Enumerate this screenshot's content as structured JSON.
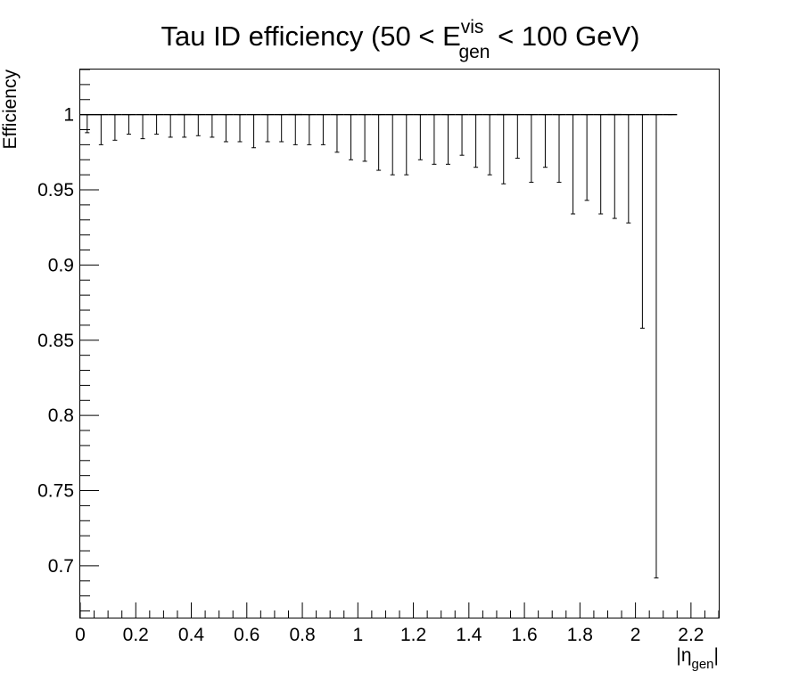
{
  "chart_data": {
    "type": "scatter",
    "title": {
      "main": "Tau ID efficiency (50 < E",
      "sup": "vis",
      "sub": "gen",
      "tail": " < 100 GeV)"
    },
    "ylabel": "Efficiency",
    "xlabel": {
      "main": "|η",
      "sub": "gen",
      "tail": "|"
    },
    "xlim": [
      0,
      2.3
    ],
    "ylim": [
      0.665,
      1.03
    ],
    "x_ticks": [
      "0",
      "0.2",
      "0.4",
      "0.6",
      "0.8",
      "1",
      "1.2",
      "1.4",
      "1.6",
      "1.8",
      "2",
      "2.2"
    ],
    "y_ticks": [
      "0.7",
      "0.75",
      "0.8",
      "0.85",
      "0.9",
      "0.95",
      "1"
    ],
    "grid": false,
    "legend": "none",
    "bin_width": 0.05,
    "series": [
      {
        "values": [
          1,
          1,
          1,
          1,
          1,
          1,
          1,
          1,
          1,
          1,
          1,
          1,
          1,
          1,
          1,
          1,
          1,
          1,
          1,
          1,
          1,
          1,
          1,
          1,
          1,
          1,
          1,
          1,
          1,
          1,
          1,
          1,
          1,
          1,
          1,
          1,
          1,
          1,
          1,
          1,
          1,
          1,
          1
        ],
        "x_bins": [
          [
            0.0,
            0.05
          ],
          [
            0.05,
            0.1
          ],
          [
            0.1,
            0.15
          ],
          [
            0.15,
            0.2
          ],
          [
            0.2,
            0.25
          ],
          [
            0.25,
            0.3
          ],
          [
            0.3,
            0.35
          ],
          [
            0.35,
            0.4
          ],
          [
            0.4,
            0.45
          ],
          [
            0.45,
            0.5
          ],
          [
            0.5,
            0.55
          ],
          [
            0.55,
            0.6
          ],
          [
            0.6,
            0.65
          ],
          [
            0.65,
            0.7
          ],
          [
            0.7,
            0.75
          ],
          [
            0.75,
            0.8
          ],
          [
            0.8,
            0.85
          ],
          [
            0.85,
            0.9
          ],
          [
            0.9,
            0.95
          ],
          [
            0.95,
            1.0
          ],
          [
            1.0,
            1.05
          ],
          [
            1.05,
            1.1
          ],
          [
            1.1,
            1.15
          ],
          [
            1.15,
            1.2
          ],
          [
            1.2,
            1.25
          ],
          [
            1.25,
            1.3
          ],
          [
            1.3,
            1.35
          ],
          [
            1.35,
            1.4
          ],
          [
            1.4,
            1.45
          ],
          [
            1.45,
            1.5
          ],
          [
            1.5,
            1.55
          ],
          [
            1.55,
            1.6
          ],
          [
            1.6,
            1.65
          ],
          [
            1.65,
            1.7
          ],
          [
            1.7,
            1.75
          ],
          [
            1.75,
            1.8
          ],
          [
            1.8,
            1.85
          ],
          [
            1.85,
            1.9
          ],
          [
            1.9,
            1.95
          ],
          [
            1.95,
            2.0
          ],
          [
            2.0,
            2.05
          ],
          [
            2.05,
            2.1
          ],
          [
            2.1,
            2.15
          ]
        ],
        "err_low": [
          0.988,
          0.98,
          0.983,
          0.987,
          0.984,
          0.987,
          0.985,
          0.985,
          0.986,
          0.985,
          0.982,
          0.982,
          0.978,
          0.982,
          0.982,
          0.98,
          0.98,
          0.98,
          0.975,
          0.97,
          0.969,
          0.963,
          0.96,
          0.96,
          0.97,
          0.967,
          0.967,
          0.973,
          0.965,
          0.96,
          0.954,
          0.971,
          0.955,
          0.965,
          0.955,
          0.934,
          0.943,
          0.934,
          0.931,
          0.928,
          0.858,
          0.692,
          1.0
        ]
      }
    ]
  }
}
